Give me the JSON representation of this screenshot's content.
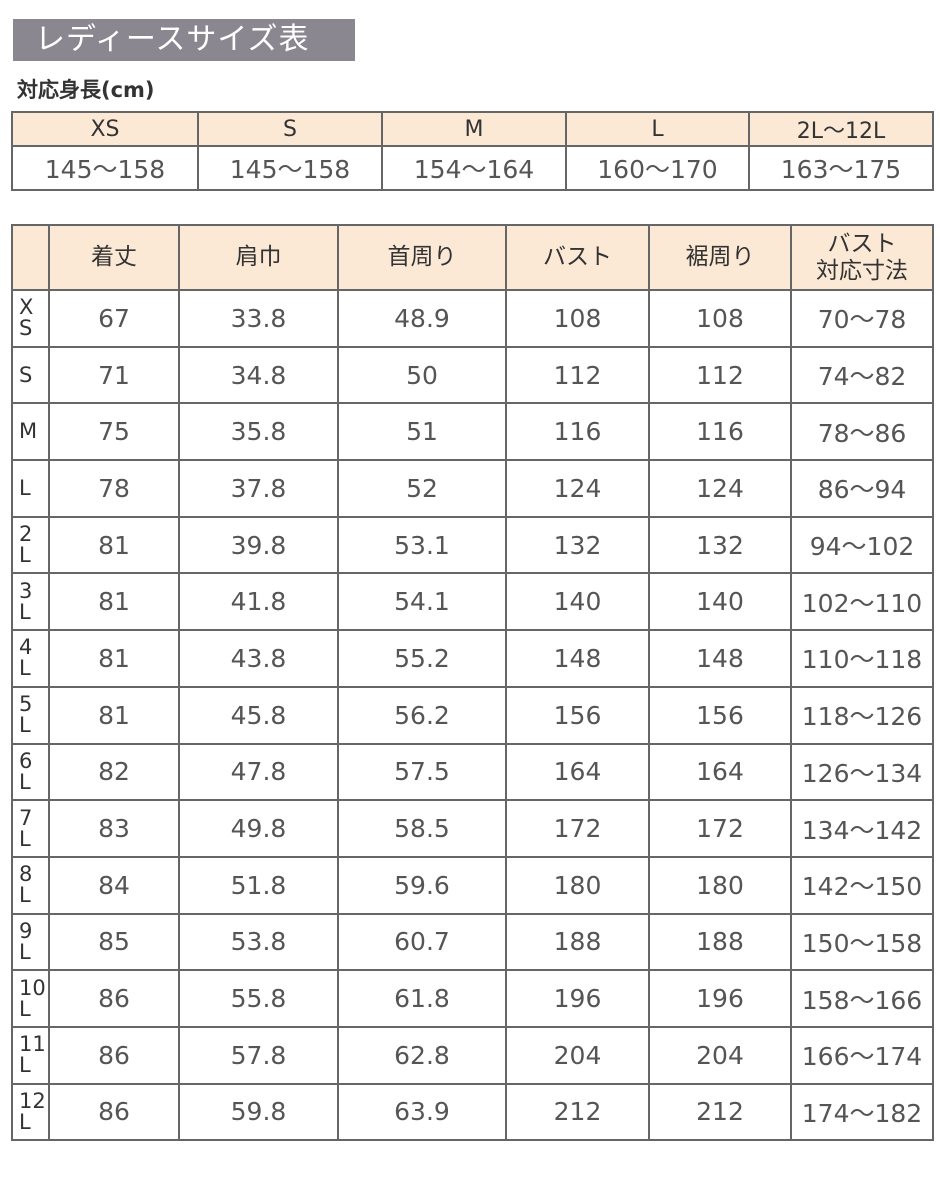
{
  "title": "レディースサイズ表",
  "height_table": {
    "heading": "対応身長(cm)",
    "sizes": [
      "XS",
      "S",
      "M",
      "L",
      "2L〜12L"
    ],
    "ranges": [
      "145〜158",
      "145〜158",
      "154〜164",
      "160〜170",
      "163〜175"
    ]
  },
  "size_table": {
    "headers": [
      "",
      "着丈",
      "肩巾",
      "首周り",
      "バスト",
      "裾周り",
      "バスト\n対応寸法"
    ],
    "rows": [
      [
        "X\nS",
        "67",
        "33.8",
        "48.9",
        "108",
        "108",
        "70〜78"
      ],
      [
        "S",
        "71",
        "34.8",
        "50",
        "112",
        "112",
        "74〜82"
      ],
      [
        "M",
        "75",
        "35.8",
        "51",
        "116",
        "116",
        "78〜86"
      ],
      [
        "L",
        "78",
        "37.8",
        "52",
        "124",
        "124",
        "86〜94"
      ],
      [
        "2\nL",
        "81",
        "39.8",
        "53.1",
        "132",
        "132",
        "94〜102"
      ],
      [
        "3\nL",
        "81",
        "41.8",
        "54.1",
        "140",
        "140",
        "102〜110"
      ],
      [
        "4\nL",
        "81",
        "43.8",
        "55.2",
        "148",
        "148",
        "110〜118"
      ],
      [
        "5\nL",
        "81",
        "45.8",
        "56.2",
        "156",
        "156",
        "118〜126"
      ],
      [
        "6\nL",
        "82",
        "47.8",
        "57.5",
        "164",
        "164",
        "126〜134"
      ],
      [
        "7\nL",
        "83",
        "49.8",
        "58.5",
        "172",
        "172",
        "134〜142"
      ],
      [
        "8\nL",
        "84",
        "51.8",
        "59.6",
        "180",
        "180",
        "142〜150"
      ],
      [
        "9\nL",
        "85",
        "53.8",
        "60.7",
        "188",
        "188",
        "150〜158"
      ],
      [
        "10\nL",
        "86",
        "55.8",
        "61.8",
        "196",
        "196",
        "158〜166"
      ],
      [
        "11\nL",
        "86",
        "57.8",
        "62.8",
        "204",
        "204",
        "166〜174"
      ],
      [
        "12\nL",
        "86",
        "59.8",
        "63.9",
        "212",
        "212",
        "174〜182"
      ]
    ]
  },
  "colors": {
    "title_bg": "#8a8790",
    "header_bg": "#fbe9d6",
    "border": "#666666"
  }
}
